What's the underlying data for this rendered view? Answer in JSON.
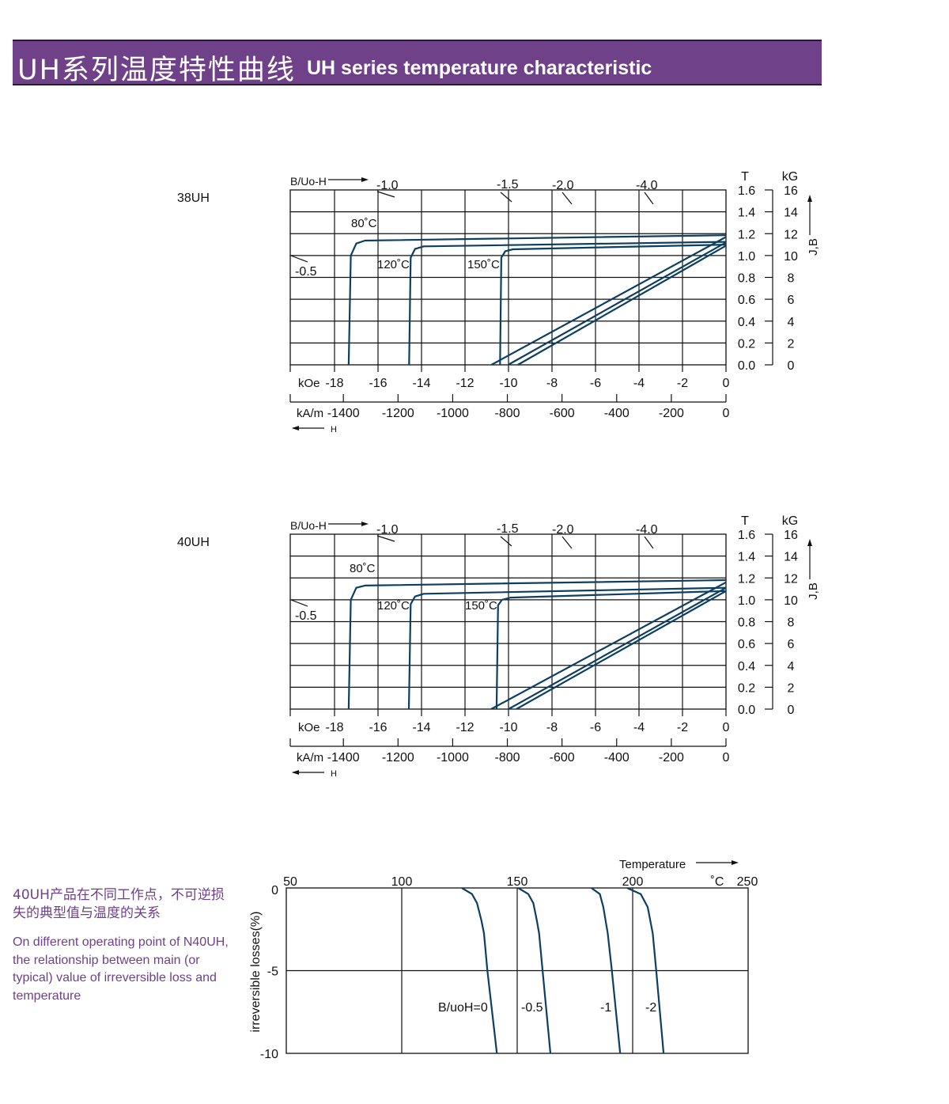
{
  "header": {
    "title_cn": "UH系列温度特性曲线",
    "title_en": "UH series temperature characteristic"
  },
  "side_note": {
    "cn": "40UH产品在不同工作点，不可逆损失的典型值与温度的关系",
    "en": "On different operating point of N40UH,  the relationship between main (or typical) value of irreversible loss and temperature"
  },
  "colors": {
    "banner": "#6e4189",
    "curve": "#0d3f63",
    "side_text": "#6e4189"
  },
  "chart_data": [
    {
      "type": "line",
      "sample": "38UH",
      "top_label": "B/Uo-H",
      "x_units": [
        "kOe",
        "kA/m"
      ],
      "x_arrow_label": "H",
      "y_units": [
        "T",
        "kG"
      ],
      "y_label": "J,B",
      "xlim_koe": [
        -20,
        0
      ],
      "ylim_t": [
        0,
        1.6
      ],
      "grid": true,
      "koe_ticks": [
        "-18",
        "-16",
        "-14",
        "-12",
        "-10",
        "-8",
        "-6",
        "-4",
        "-2",
        "0"
      ],
      "kam_ticks": [
        "-1400",
        "-1200",
        "-1000",
        "-800",
        "-600",
        "-400",
        "-200",
        "0"
      ],
      "t_ticks": [
        "1.6",
        "1.4",
        "1.2",
        "1.0",
        "0.8",
        "0.6",
        "0.4",
        "0.2",
        "0.0"
      ],
      "kg_ticks": [
        "16",
        "14",
        "12",
        "10",
        "8",
        "6",
        "4",
        "2",
        "0"
      ],
      "load_lines": [
        "-1.0",
        "-1.5",
        "-2.0",
        "-4.0",
        "-0.5"
      ],
      "series": [
        {
          "name": "80˚C",
          "kind": "J",
          "points": [
            [
              -17.35,
              0
            ],
            [
              -17.25,
              1.0
            ],
            [
              -17.0,
              1.11
            ],
            [
              -16.6,
              1.137
            ],
            [
              0,
              1.186
            ]
          ]
        },
        {
          "name": "120˚C",
          "kind": "J",
          "points": [
            [
              -14.57,
              0
            ],
            [
              -14.5,
              0.98
            ],
            [
              -14.3,
              1.06
            ],
            [
              -13.9,
              1.084
            ],
            [
              0,
              1.125
            ]
          ]
        },
        {
          "name": "150˚C",
          "kind": "J",
          "points": [
            [
              -10.39,
              0
            ],
            [
              -10.33,
              0.98
            ],
            [
              -10.15,
              1.04
            ],
            [
              -9.8,
              1.057
            ],
            [
              0,
              1.1
            ]
          ]
        },
        {
          "kind": "B",
          "points": [
            [
              -10.79,
              0
            ],
            [
              0,
              1.17
            ]
          ]
        },
        {
          "kind": "B",
          "points": [
            [
              -10.02,
              0
            ],
            [
              0,
              1.12
            ]
          ]
        },
        {
          "kind": "B",
          "points": [
            [
              -9.57,
              0
            ],
            [
              0,
              1.09
            ]
          ]
        }
      ]
    },
    {
      "type": "line",
      "sample": "40UH",
      "top_label": "B/Uo-H",
      "x_units": [
        "kOe",
        "kA/m"
      ],
      "x_arrow_label": "H",
      "y_units": [
        "T",
        "kG"
      ],
      "y_label": "J,B",
      "xlim_koe": [
        -20,
        0
      ],
      "ylim_t": [
        0,
        1.6
      ],
      "grid": true,
      "koe_ticks": [
        "-18",
        "-16",
        "-14",
        "-12",
        "-10",
        "-8",
        "-6",
        "-4",
        "-2",
        "0"
      ],
      "kam_ticks": [
        "-1400",
        "-1200",
        "-1000",
        "-800",
        "-600",
        "-400",
        "-200",
        "0"
      ],
      "t_ticks": [
        "1.6",
        "1.4",
        "1.2",
        "1.0",
        "0.8",
        "0.6",
        "0.4",
        "0.2",
        "0.0"
      ],
      "kg_ticks": [
        "16",
        "14",
        "12",
        "10",
        "8",
        "6",
        "4",
        "2",
        "0"
      ],
      "load_lines": [
        "-1.0",
        "-1.5",
        "-2.0",
        "-4.0",
        "-0.5"
      ],
      "series": [
        {
          "name": "80˚C",
          "kind": "J",
          "points": [
            [
              -17.35,
              0
            ],
            [
              -17.25,
              1.0
            ],
            [
              -17.0,
              1.11
            ],
            [
              -16.6,
              1.13
            ],
            [
              0,
              1.18
            ]
          ]
        },
        {
          "name": "120˚C",
          "kind": "J",
          "points": [
            [
              -14.58,
              0
            ],
            [
              -14.5,
              0.96
            ],
            [
              -14.3,
              1.03
            ],
            [
              -13.9,
              1.055
            ],
            [
              0,
              1.11
            ]
          ]
        },
        {
          "name": "150˚C",
          "kind": "J",
          "points": [
            [
              -10.55,
              0
            ],
            [
              -10.48,
              0.95
            ],
            [
              -10.3,
              1.0
            ],
            [
              -9.9,
              1.02
            ],
            [
              0,
              1.08
            ]
          ]
        },
        {
          "kind": "B",
          "points": [
            [
              -10.8,
              0
            ],
            [
              0,
              1.16
            ]
          ]
        },
        {
          "kind": "B",
          "points": [
            [
              -10.0,
              0
            ],
            [
              0,
              1.11
            ]
          ]
        },
        {
          "kind": "B",
          "points": [
            [
              -9.64,
              0
            ],
            [
              0,
              1.08
            ]
          ]
        }
      ]
    },
    {
      "type": "line",
      "xlabel": "Temperature",
      "x_unit": "˚C",
      "ylabel": "irreversible  losses(%)",
      "xlim": [
        50,
        250
      ],
      "ylim": [
        -10,
        0
      ],
      "grid": true,
      "x_ticks": [
        "50",
        "100",
        "150",
        "200",
        "250"
      ],
      "y_ticks": [
        "0",
        "-5",
        "-10"
      ],
      "series": [
        {
          "name": "B/uoH=0",
          "points": [
            [
              126.0,
              0
            ],
            [
              130.4,
              -0.37
            ],
            [
              132.6,
              -0.92
            ],
            [
              134.5,
              -1.96
            ],
            [
              135.6,
              -2.75
            ],
            [
              137.1,
              -5
            ],
            [
              141.2,
              -10
            ]
          ]
        },
        {
          "name": "-0.5",
          "points": [
            [
              150.4,
              0
            ],
            [
              154.8,
              -0.37
            ],
            [
              157.0,
              -0.92
            ],
            [
              158.5,
              -1.96
            ],
            [
              159.5,
              -2.75
            ],
            [
              161.0,
              -5
            ],
            [
              164.4,
              -10
            ]
          ]
        },
        {
          "name": "-1",
          "points": [
            [
              182.1,
              0
            ],
            [
              185.8,
              -0.37
            ],
            [
              187.3,
              -1.16
            ],
            [
              189.2,
              -2.75
            ],
            [
              191.0,
              -5
            ],
            [
              194.6,
              -10
            ]
          ]
        },
        {
          "name": "-2",
          "points": [
            [
              197.6,
              0
            ],
            [
              203.5,
              -0.37
            ],
            [
              206.5,
              -1.16
            ],
            [
              208.7,
              -2.75
            ],
            [
              210.2,
              -5
            ],
            [
              213.4,
              -10
            ]
          ]
        }
      ]
    }
  ]
}
